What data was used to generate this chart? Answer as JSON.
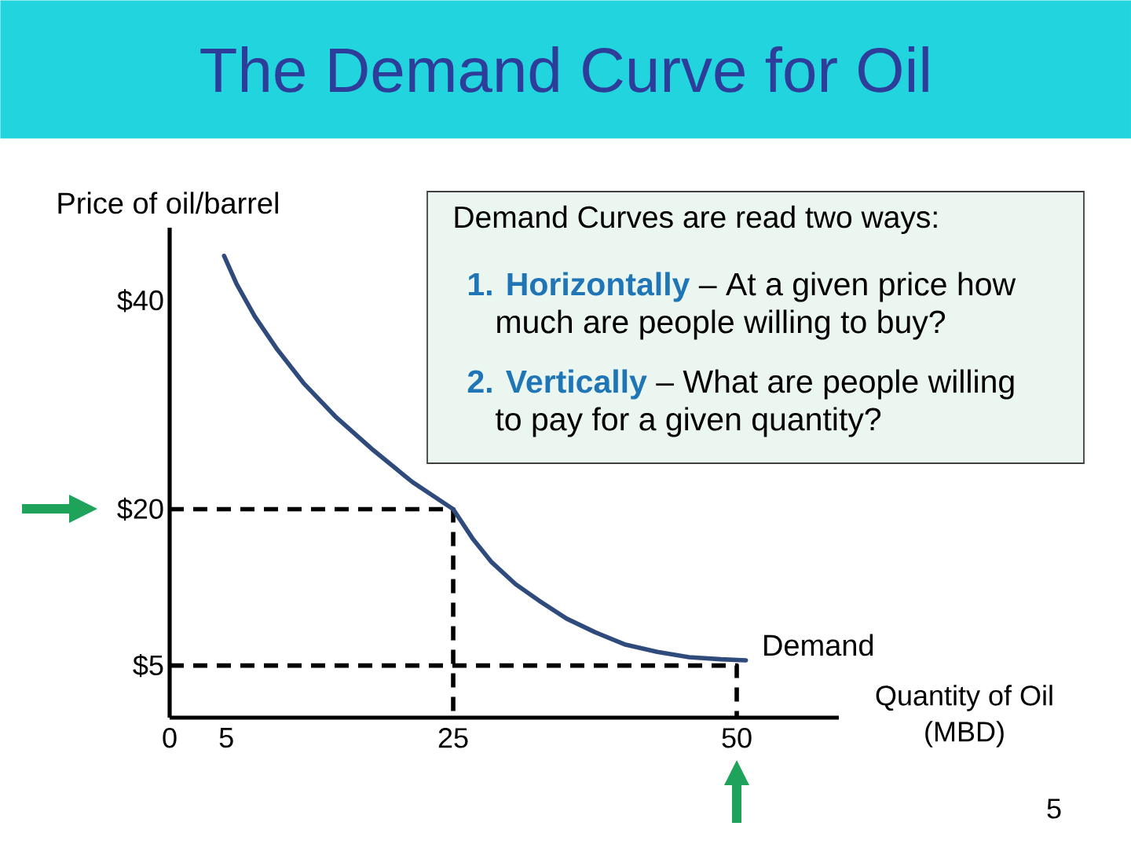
{
  "chart_data": {
    "type": "line",
    "title": "The Demand Curve for Oil",
    "xlabel": "Quantity of Oil (MBD)",
    "ylabel": "Price of oil/barrel",
    "annotations": [
      "Demand Curves are read two ways:",
      "**1.  Horizontally** – At a given price how much are people willing to buy?",
      "**2.  Vertically** – What are people willing to pay for a given quantity?",
      "5"
    ],
    "xlim": [
      0,
      59
    ],
    "ylim": [
      0,
      47
    ],
    "xticks": [
      0,
      5,
      25,
      50
    ],
    "yticks": [
      {
        "value": 5,
        "label": "$5"
      },
      {
        "value": 20,
        "label": "$20"
      },
      {
        "value": 40,
        "label": "$40"
      }
    ],
    "line_style": "solid",
    "series": [
      {
        "color": "#000000",
        "line_style": "dashed",
        "x": [
          0,
          25,
          25
        ],
        "values": [
          20,
          20,
          0
        ]
      },
      {
        "color": "#000000",
        "line_style": "dashed",
        "x": [
          0,
          50,
          50
        ],
        "values": [
          5,
          5,
          0
        ]
      },
      {
        "name": "Demand",
        "color": "#2f4b7c",
        "x": [
          4.8,
          5.9,
          7.5,
          9.5,
          11.8,
          14.6,
          17.8,
          21.4,
          25,
          26.7,
          28.4,
          30.5,
          32.6,
          35,
          37.5,
          40.2,
          43,
          45.8,
          48.6,
          50.8
        ],
        "values": [
          44.3,
          41.6,
          38.5,
          35.3,
          32.1,
          28.9,
          25.8,
          22.6,
          20,
          17.2,
          14.9,
          12.8,
          11.2,
          9.5,
          8.2,
          7,
          6.3,
          5.8,
          5.6,
          5.5
        ]
      }
    ]
  }
}
